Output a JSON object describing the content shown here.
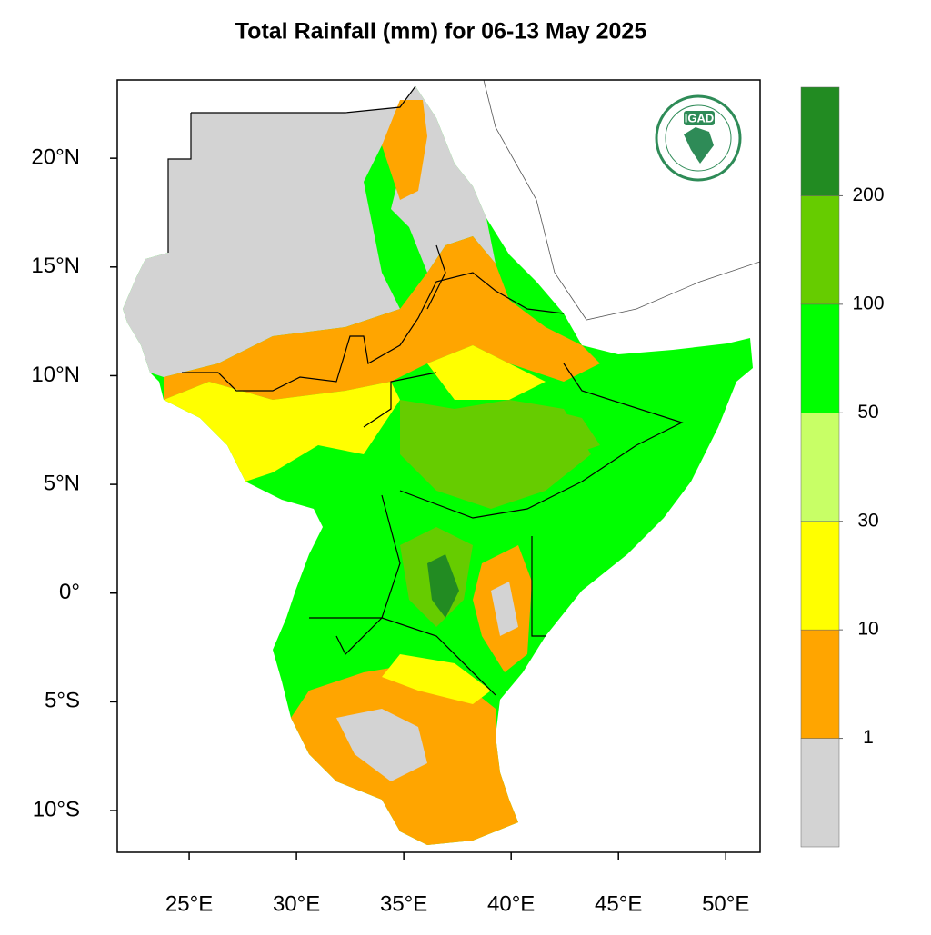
{
  "map": {
    "title": "Total Rainfall (mm) for 06-13 May 2025",
    "lon_range": [
      21.65,
      51.6
    ],
    "lat_range": [
      -11.92,
      23.6
    ],
    "lon_ticks": [
      {
        "value": 25,
        "label": "25°E"
      },
      {
        "value": 30,
        "label": "30°E"
      },
      {
        "value": 35,
        "label": "35°E"
      },
      {
        "value": 40,
        "label": "40°E"
      },
      {
        "value": 45,
        "label": "45°E"
      },
      {
        "value": 50,
        "label": "50°E"
      }
    ],
    "lat_ticks": [
      {
        "value": 20,
        "label": "20°N"
      },
      {
        "value": 15,
        "label": "15°N"
      },
      {
        "value": 10,
        "label": "10°N"
      },
      {
        "value": 5,
        "label": "5°N"
      },
      {
        "value": 0,
        "label": "0°"
      },
      {
        "value": -5,
        "label": "5°S"
      },
      {
        "value": -10,
        "label": "10°S"
      }
    ],
    "colorbar": {
      "levels": [
        1,
        10,
        30,
        50,
        100,
        200
      ],
      "colors": [
        "#d3d3d3",
        "#ffa500",
        "#ffff00",
        "#c8ff66",
        "#00ff00",
        "#66cc00",
        "#228b22"
      ]
    },
    "logo": {
      "text": "IGAD"
    }
  }
}
